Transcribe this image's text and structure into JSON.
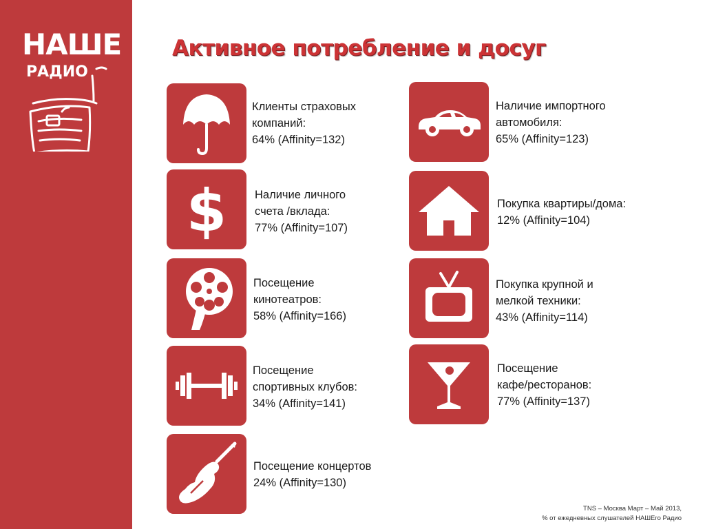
{
  "brand": {
    "line1": "НАШЕ",
    "line2": "РАДИО"
  },
  "title": "Активное потребление и досуг",
  "colors": {
    "brand_red": "#be3a3c",
    "title_red": "#cc3335",
    "text": "#1a1a1a"
  },
  "items": [
    {
      "icon": "umbrella-icon",
      "line1": "Клиенты страховых",
      "line2": "компаний:",
      "stat": "64% (Affinity=132)"
    },
    {
      "icon": "car-icon",
      "line1": "Наличие импортного",
      "line2": "автомобиля:",
      "stat": "65% (Affinity=123)"
    },
    {
      "icon": "dollar-icon",
      "line1": "Наличие личного",
      "line2": "счета /вклада:",
      "stat": "77% (Affinity=107)"
    },
    {
      "icon": "house-icon",
      "line1": "Покупка квартиры/дома:",
      "stat": "12% (Affinity=104)"
    },
    {
      "icon": "film-reel-icon",
      "line1": "Посещение",
      "line2": "кинотеатров:",
      "stat": "58% (Affinity=166)"
    },
    {
      "icon": "tv-icon",
      "line1": "Покупка крупной и",
      "line2": "мелкой техники:",
      "stat": "43% (Affinity=114)"
    },
    {
      "icon": "dumbbell-icon",
      "line1": "Посещение",
      "line2": "спортивных клубов:",
      "stat": "34% (Affinity=141)"
    },
    {
      "icon": "cocktail-icon",
      "line1": "Посещение",
      "line2": "кафе/ресторанов:",
      "stat": "77% (Affinity=137)"
    },
    {
      "icon": "guitar-icon",
      "line1": "Посещение концертов",
      "stat": "24% (Affinity=130)"
    }
  ],
  "footer": {
    "line1": "TNS – Москва Март – Май 2013,",
    "line2": "% от ежедневных слушателей НАШЕго Радио"
  }
}
